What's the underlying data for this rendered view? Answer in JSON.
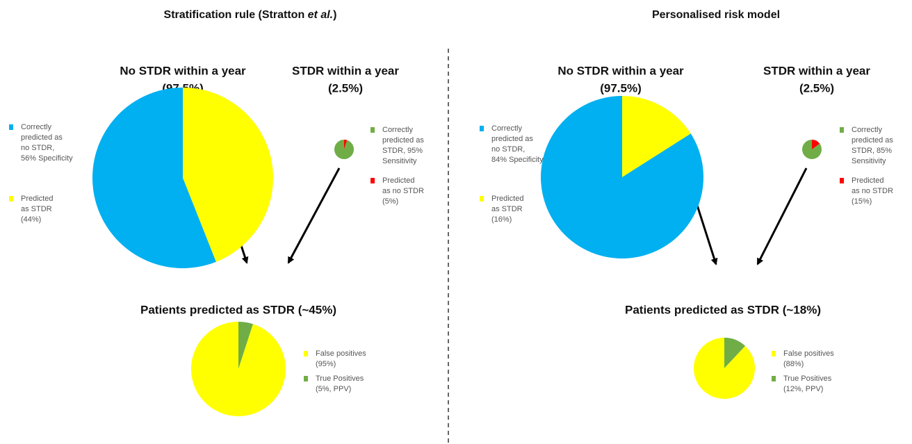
{
  "panels": [
    {
      "title": [
        "Stratification rule (Stratton ",
        "et al.",
        ")"
      ],
      "groups": [
        {
          "heading": "No STDR within a year",
          "share": "(97.5%)",
          "slices": [
            {
              "label": [
                "Correctly",
                "predicted as",
                "no STDR,",
                "56% Specificity"
              ],
              "value": 56,
              "color": "#00b0f0"
            },
            {
              "label": [
                "Predicted",
                "as STDR",
                "(44%)"
              ],
              "value": 44,
              "color": "#ffff00"
            }
          ]
        },
        {
          "heading": "STDR within a year",
          "share": "(2.5%)",
          "slices": [
            {
              "label": [
                "Correctly",
                "predicted as",
                "STDR, 95%",
                "Sensitivity"
              ],
              "value": 95,
              "color": "#70ad47"
            },
            {
              "label": [
                "Predicted",
                "as no STDR",
                "(5%)"
              ],
              "value": 5,
              "color": "#ff0000"
            }
          ]
        }
      ],
      "result": {
        "heading": "Patients predicted as STDR (~45%)",
        "slices": [
          {
            "label": [
              "False positives",
              "(95%)"
            ],
            "value": 95,
            "color": "#ffff00"
          },
          {
            "label": [
              "True Positives",
              "(5%, PPV)"
            ],
            "value": 5,
            "color": "#70ad47"
          }
        ]
      }
    },
    {
      "title": [
        "Personalised risk model"
      ],
      "groups": [
        {
          "heading": "No STDR within a year",
          "share": "(97.5%)",
          "slices": [
            {
              "label": [
                "Correctly",
                "predicted as",
                "no STDR,",
                "84% Specificity"
              ],
              "value": 84,
              "color": "#00b0f0"
            },
            {
              "label": [
                "Predicted",
                "as STDR",
                "(16%)"
              ],
              "value": 16,
              "color": "#ffff00"
            }
          ]
        },
        {
          "heading": "STDR within a year",
          "share": "(2.5%)",
          "slices": [
            {
              "label": [
                "Correctly",
                "predicted as",
                "STDR, 85%",
                "Sensitivity"
              ],
              "value": 85,
              "color": "#70ad47"
            },
            {
              "label": [
                "Predicted",
                "as no STDR",
                "(15%)"
              ],
              "value": 15,
              "color": "#ff0000"
            }
          ]
        }
      ],
      "result": {
        "heading": "Patients predicted as STDR (~18%)",
        "slices": [
          {
            "label": [
              "False positives",
              "(88%)"
            ],
            "value": 88,
            "color": "#ffff00"
          },
          {
            "label": [
              "True Positives",
              "(12%, PPV)"
            ],
            "value": 12,
            "color": "#70ad47"
          }
        ]
      }
    }
  ]
}
